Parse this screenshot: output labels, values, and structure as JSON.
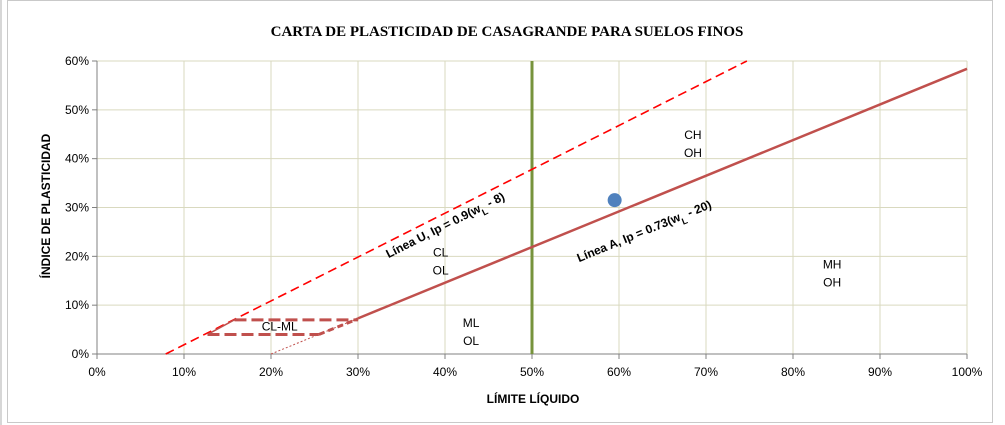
{
  "chart_data": {
    "type": "scatter",
    "title": "CARTA DE PLASTICIDAD DE CASAGRANDE PARA SUELOS FINOS",
    "xlabel": "LÍMITE LÍQUIDO",
    "ylabel": "ÍNDICE DE PLASTICIDAD",
    "xlim": [
      0,
      100
    ],
    "ylim": [
      0,
      60
    ],
    "x_ticks": [
      "0%",
      "10%",
      "20%",
      "30%",
      "40%",
      "50%",
      "60%",
      "70%",
      "80%",
      "90%",
      "100%"
    ],
    "y_ticks": [
      "0%",
      "10%",
      "20%",
      "30%",
      "40%",
      "50%",
      "60%"
    ],
    "grid": true,
    "colors": {
      "grid": "#d9d9bf",
      "a_line": "#c0504d",
      "u_line": "#ff0000",
      "ll50_line": "#77933c",
      "point": "#4f81bd",
      "clml": "#c0504d"
    },
    "lines": {
      "a_line": {
        "points": [
          [
            30,
            7.3
          ],
          [
            100,
            58.4
          ]
        ],
        "label_text": "Línea A, Ip = 0.73(w",
        "label_sub": "L",
        "label_end": " - 20)"
      },
      "a_line_ext": {
        "points": [
          [
            20,
            0
          ],
          [
            30,
            7.3
          ]
        ]
      },
      "u_line": {
        "points": [
          [
            7.9,
            0
          ],
          [
            74.7,
            60
          ]
        ],
        "label_text": "Línea U, Ip = 0.9(w",
        "label_sub": "L",
        "label_end": " - 8)"
      },
      "ll50": {
        "points": [
          [
            50,
            0
          ],
          [
            50,
            60
          ]
        ]
      },
      "clml_top": {
        "points": [
          [
            15.8,
            7
          ],
          [
            30,
            7
          ]
        ]
      },
      "clml_bottom": {
        "points": [
          [
            12.7,
            4
          ],
          [
            25.5,
            4
          ]
        ]
      }
    },
    "points": [
      {
        "x": 59.5,
        "y": 31.5
      }
    ],
    "zones": [
      {
        "lines": [
          "CH",
          "OH"
        ],
        "x": 68.5,
        "y": 44
      },
      {
        "lines": [
          "CL",
          "OL"
        ],
        "x": 39.5,
        "y": 20
      },
      {
        "lines": [
          "MH",
          "OH"
        ],
        "x": 84.5,
        "y": 17.5
      },
      {
        "lines": [
          "ML",
          "OL"
        ],
        "x": 43,
        "y": 5.5
      },
      {
        "lines": [
          "CL-ML"
        ],
        "x": 21,
        "y": 4.8
      }
    ]
  }
}
